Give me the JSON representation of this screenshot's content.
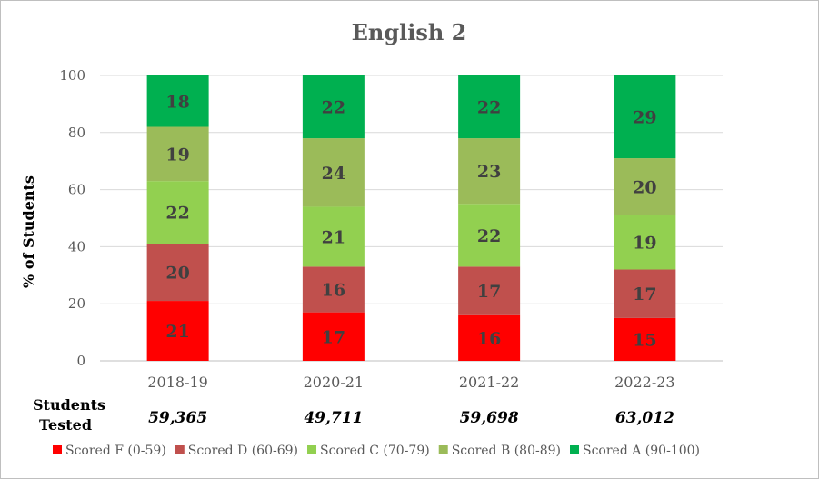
{
  "chart_data": {
    "type": "bar",
    "stacked": true,
    "title": "English 2",
    "ylabel": "% of Students",
    "ylim": [
      0,
      100
    ],
    "yticks": [
      0,
      20,
      40,
      60,
      80,
      100
    ],
    "grid": true,
    "legend_position": "bottom",
    "categories": [
      "2018-19",
      "2020-21",
      "2021-22",
      "2022-23"
    ],
    "series": [
      {
        "name": "Scored F (0-59)",
        "color": "#ff0000",
        "values": [
          21,
          17,
          16,
          15
        ]
      },
      {
        "name": "Scored D (60-69)",
        "color": "#c0504d",
        "values": [
          20,
          16,
          17,
          17
        ]
      },
      {
        "name": "Scored C (70-79)",
        "color": "#92d050",
        "values": [
          22,
          21,
          22,
          19
        ]
      },
      {
        "name": "Scored B (80-89)",
        "color": "#9bbb59",
        "values": [
          19,
          24,
          23,
          20
        ]
      },
      {
        "name": "Scored A (90-100)",
        "color": "#00b050",
        "values": [
          18,
          22,
          22,
          29
        ]
      }
    ],
    "tested_label": [
      "Students",
      "Tested"
    ],
    "tested_counts": [
      "59,365",
      "49,711",
      "59,698",
      "63,012"
    ]
  }
}
